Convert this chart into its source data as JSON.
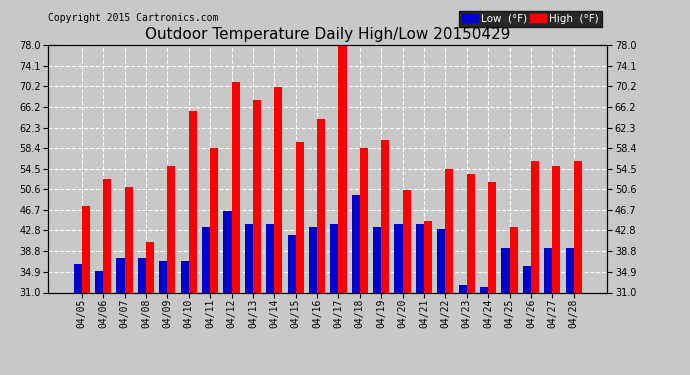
{
  "title": "Outdoor Temperature Daily High/Low 20150429",
  "copyright": "Copyright 2015 Cartronics.com",
  "legend_low": "Low  (°F)",
  "legend_high": "High  (°F)",
  "dates": [
    "04/05",
    "04/06",
    "04/07",
    "04/08",
    "04/09",
    "04/10",
    "04/11",
    "04/12",
    "04/13",
    "04/14",
    "04/15",
    "04/16",
    "04/17",
    "04/18",
    "04/19",
    "04/20",
    "04/21",
    "04/22",
    "04/23",
    "04/24",
    "04/25",
    "04/26",
    "04/27",
    "04/28"
  ],
  "highs": [
    47.5,
    52.5,
    51.0,
    40.5,
    55.0,
    65.5,
    58.5,
    71.0,
    67.5,
    70.0,
    59.5,
    64.0,
    78.5,
    58.5,
    60.0,
    50.5,
    44.5,
    54.5,
    53.5,
    52.0,
    43.5,
    56.0,
    55.0,
    56.0
  ],
  "lows": [
    36.5,
    35.0,
    37.5,
    37.5,
    37.0,
    37.0,
    43.5,
    46.5,
    44.0,
    44.0,
    42.0,
    43.5,
    44.0,
    49.5,
    43.5,
    44.0,
    44.0,
    43.0,
    32.5,
    32.0,
    39.5,
    36.0,
    39.5,
    39.5
  ],
  "ylim": [
    31.0,
    78.0
  ],
  "yticks": [
    31.0,
    34.9,
    38.8,
    42.8,
    46.7,
    50.6,
    54.5,
    58.4,
    62.3,
    66.2,
    70.2,
    74.1,
    78.0
  ],
  "bar_width": 0.38,
  "high_color": "#ff0000",
  "low_color": "#0000cc",
  "bg_color": "#c8c8c8",
  "plot_bg_color": "#c8c8c8",
  "grid_color": "#ffffff",
  "title_fontsize": 11,
  "copyright_fontsize": 7,
  "tick_fontsize": 7
}
